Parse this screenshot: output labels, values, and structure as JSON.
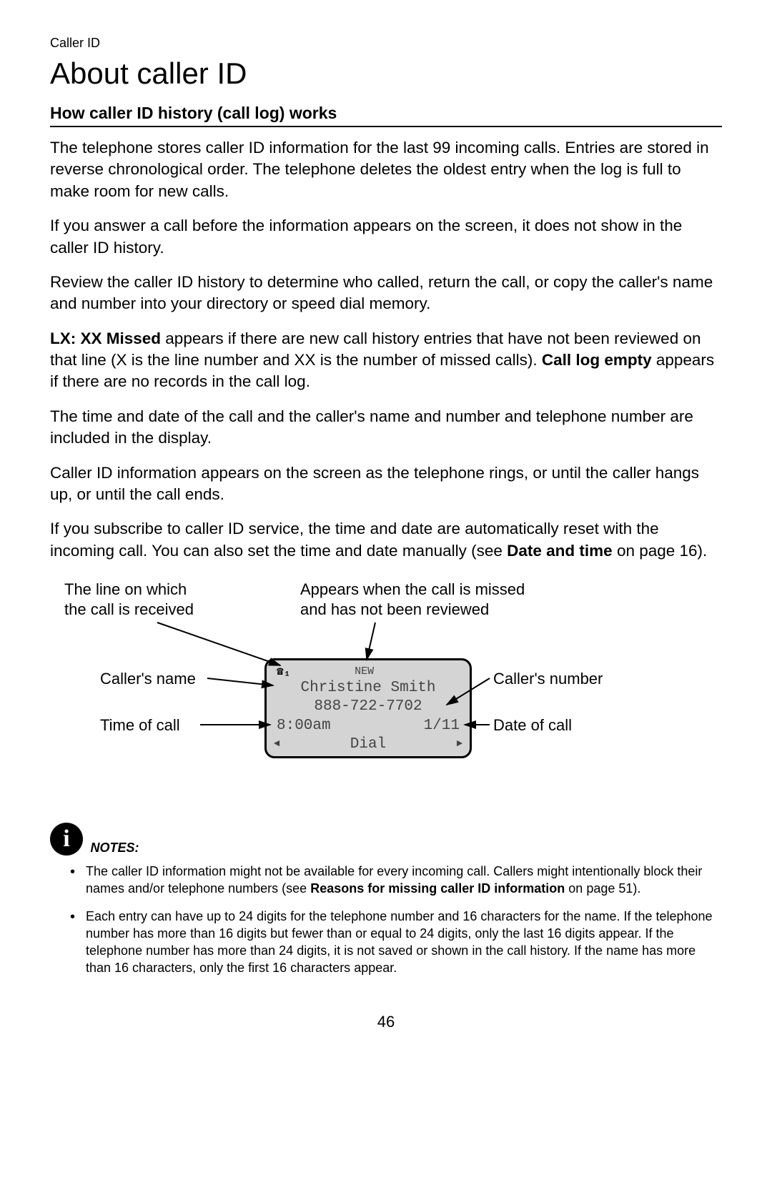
{
  "header": {
    "section": "Caller ID"
  },
  "title": "About caller ID",
  "section_heading": "How caller ID history (call log) works",
  "paras": {
    "p1": "The telephone stores caller ID information for the last 99 incoming calls. Entries are stored in reverse chronological order. The telephone deletes the oldest entry when the log is full to make room for new calls.",
    "p2": "If you answer a call before the information appears on the screen, it does not show in the caller ID history.",
    "p3": "Review the caller ID history to determine who called, return the call, or copy the caller's name and number into your directory or speed dial memory.",
    "p4a": "LX: XX Missed",
    "p4b": " appears if there are new call history entries that have not been reviewed on that line (X is the line number and XX is the number of missed calls). ",
    "p4c": "Call log empty",
    "p4d": " appears if there are no records in the call log.",
    "p5": "The time and date of the call and the caller's name and number and telephone number are included in the display.",
    "p6": "Caller ID information appears on the screen as the telephone rings, or until the caller hangs up, or until the call ends.",
    "p7a": "If you subscribe to caller ID service, the time and date are automatically reset with the incoming call. You can also set the time and date manually (see ",
    "p7b": "Date and time",
    "p7c": " on page 16)."
  },
  "diagram": {
    "labels": {
      "line_received": "The line on which\nthe call is received",
      "missed_new": "Appears when the call is missed\nand has not been reviewed",
      "caller_name": "Caller's name",
      "time_of_call": "Time of call",
      "caller_number": "Caller's number",
      "date_of_call": "Date of call"
    },
    "lcd": {
      "line_indicator": "☎₁",
      "new_badge": "NEW",
      "name": "Christine Smith",
      "number": "888-722-7702",
      "time": "8:00am",
      "date": "1/11",
      "softkey": "Dial",
      "left_arrow": "◄",
      "right_arrow": "►"
    },
    "style": {
      "arrow_color": "#000000",
      "lcd_bg": "#d4d4d4",
      "lcd_border": "#000000",
      "lcd_text": "#444444"
    }
  },
  "notes": {
    "label": "NOTES:",
    "items": [
      {
        "pre": "The caller ID information might not be available for every incoming call. Callers might intentionally block their names and/or telephone numbers (see ",
        "bold": "Reasons for missing caller ID information",
        "post": " on page 51)."
      },
      {
        "pre": "Each entry can have up to 24 digits for the telephone number and 16 characters for the name. If the telephone number has more than 16 digits but fewer than or equal to 24 digits, only the last 16 digits appear. If the telephone number has more than 24 digits, it is not saved or shown in the call history. If the name has more than 16 characters, only the first 16 characters appear.",
        "bold": "",
        "post": ""
      }
    ]
  },
  "page_number": "46"
}
